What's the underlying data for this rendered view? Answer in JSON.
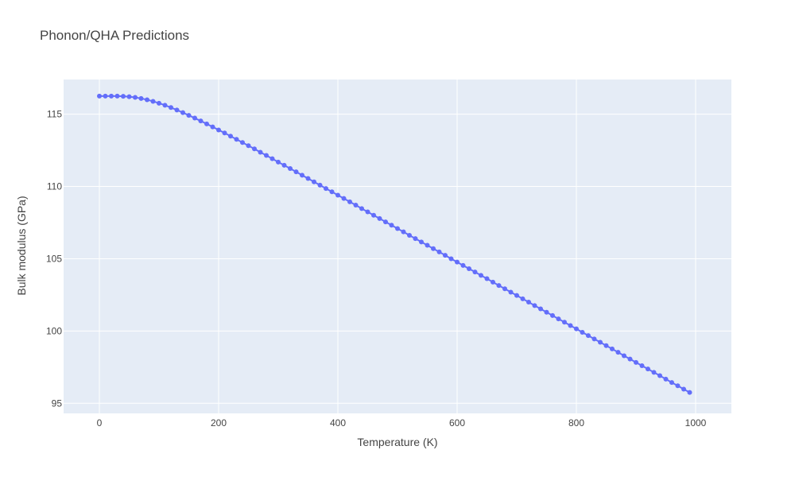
{
  "chart_data": {
    "type": "line",
    "mode": "lines+markers",
    "title": "Phonon/QHA Predictions",
    "xlabel": "Temperature (K)",
    "ylabel": "Bulk modulus (GPa)",
    "xlim": [
      -60,
      1060
    ],
    "ylim": [
      94.3,
      117.4
    ],
    "xticks": [
      0,
      200,
      400,
      600,
      800,
      1000
    ],
    "yticks": [
      95,
      100,
      105,
      110,
      115
    ],
    "grid": true,
    "legend": "none",
    "colors": {
      "series": "#636efa",
      "plot_bg": "#e5ecf6",
      "grid": "#ffffff",
      "text": "#444444"
    },
    "series": [
      {
        "x": [
          0,
          10,
          20,
          30,
          40,
          50,
          60,
          70,
          80,
          90,
          100,
          110,
          120,
          130,
          140,
          150,
          160,
          170,
          180,
          190,
          200,
          210,
          220,
          230,
          240,
          250,
          260,
          270,
          280,
          290,
          300,
          310,
          320,
          330,
          340,
          350,
          360,
          370,
          380,
          390,
          400,
          410,
          420,
          430,
          440,
          450,
          460,
          470,
          480,
          490,
          500,
          510,
          520,
          530,
          540,
          550,
          560,
          570,
          580,
          590,
          600,
          610,
          620,
          630,
          640,
          650,
          660,
          670,
          680,
          690,
          700,
          710,
          720,
          730,
          740,
          750,
          760,
          770,
          780,
          790,
          800,
          810,
          820,
          830,
          840,
          850,
          860,
          870,
          880,
          890,
          900,
          910,
          920,
          930,
          940,
          950,
          960,
          970,
          980,
          990
        ],
        "y": [
          116.25,
          116.25,
          116.25,
          116.25,
          116.24,
          116.21,
          116.16,
          116.09,
          116.0,
          115.89,
          115.76,
          115.62,
          115.46,
          115.29,
          115.11,
          114.92,
          114.73,
          114.53,
          114.33,
          114.12,
          113.91,
          113.7,
          113.48,
          113.26,
          113.04,
          112.82,
          112.6,
          112.37,
          112.15,
          111.92,
          111.69,
          111.47,
          111.24,
          111.01,
          110.78,
          110.55,
          110.32,
          110.09,
          109.86,
          109.63,
          109.4,
          109.17,
          108.94,
          108.71,
          108.47,
          108.24,
          108.01,
          107.78,
          107.55,
          107.32,
          107.09,
          106.86,
          106.62,
          106.39,
          106.16,
          105.93,
          105.7,
          105.47,
          105.24,
          105.0,
          104.77,
          104.54,
          104.31,
          104.08,
          103.85,
          103.62,
          103.38,
          103.15,
          102.92,
          102.69,
          102.46,
          102.23,
          102.0,
          101.76,
          101.53,
          101.3,
          101.07,
          100.84,
          100.61,
          100.38,
          100.15,
          99.91,
          99.68,
          99.45,
          99.22,
          98.99,
          98.76,
          98.53,
          98.29,
          98.06,
          97.83,
          97.6,
          97.37,
          97.14,
          96.91,
          96.67,
          96.44,
          96.21,
          95.98,
          95.75
        ]
      }
    ]
  }
}
